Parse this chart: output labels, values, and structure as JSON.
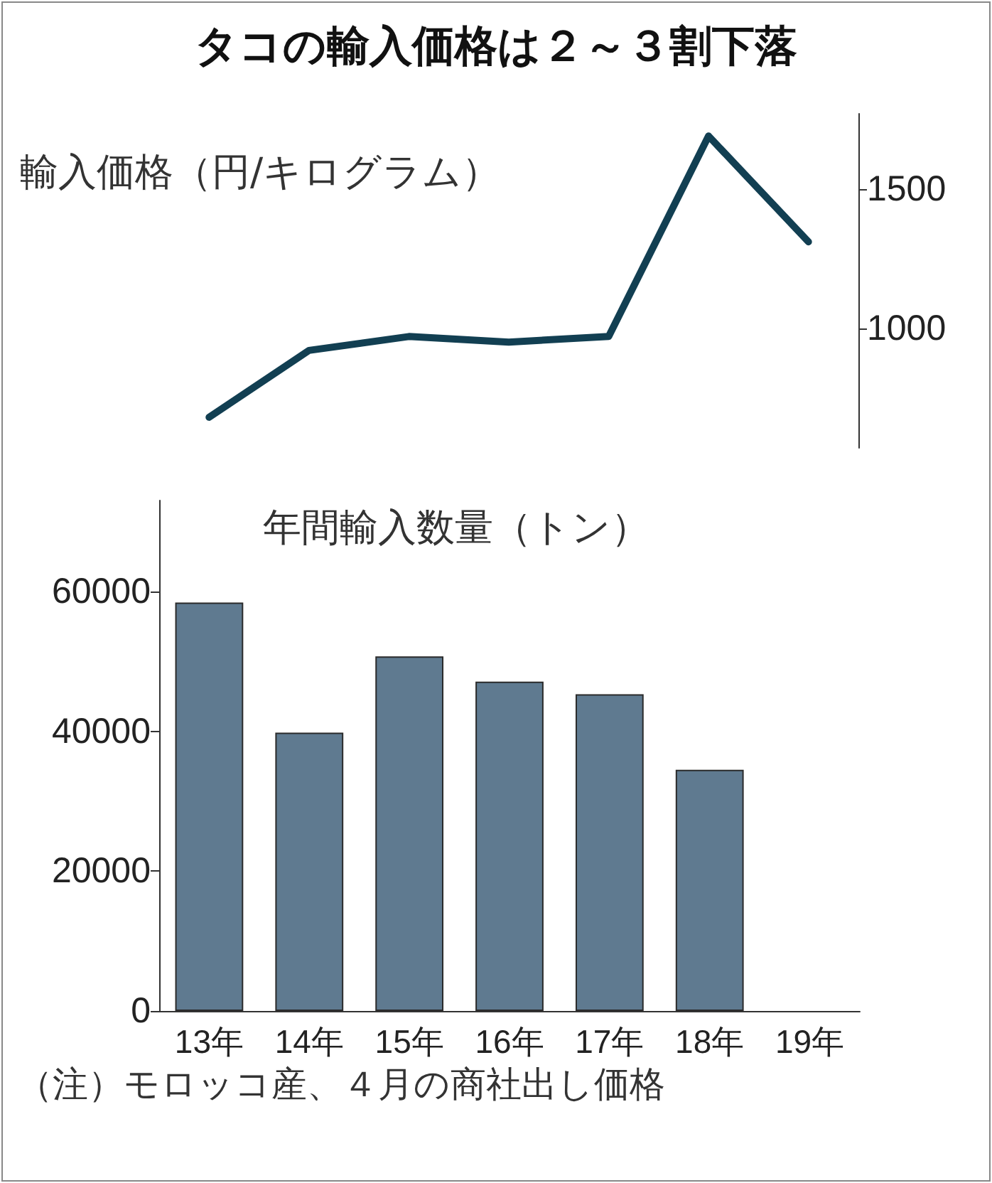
{
  "chart_data": [
    {
      "type": "line",
      "title": "タコの輸入価格は２～３割下落",
      "ylabel": "輸入価格（円/キログラム）",
      "categories": [
        null,
        null,
        null,
        null,
        null,
        null,
        null
      ],
      "series": [
        {
          "color": "#123f52",
          "values": [
            680,
            920,
            970,
            950,
            970,
            1690,
            1310
          ]
        }
      ],
      "ylim": [
        570,
        1770
      ],
      "yticks": [
        1000,
        1500
      ],
      "tick_labels": "y",
      "marker": "none",
      "line_style": "solid"
    },
    {
      "type": "bar",
      "ylabel": "年間輸入数量（トン）",
      "categories": [
        "13年",
        "14年",
        "15年",
        "16年",
        "17年",
        "18年",
        "19年"
      ],
      "series": [
        {
          "color": "#5f7a90",
          "values": [
            58400,
            39800,
            50700,
            47100,
            45300,
            34500,
            null
          ]
        }
      ],
      "ylim": [
        0,
        73000
      ],
      "yticks": [
        0,
        20000,
        40000,
        60000
      ],
      "annotations": [
        "（注）モロッコ産、４月の商社出し価格"
      ]
    }
  ]
}
